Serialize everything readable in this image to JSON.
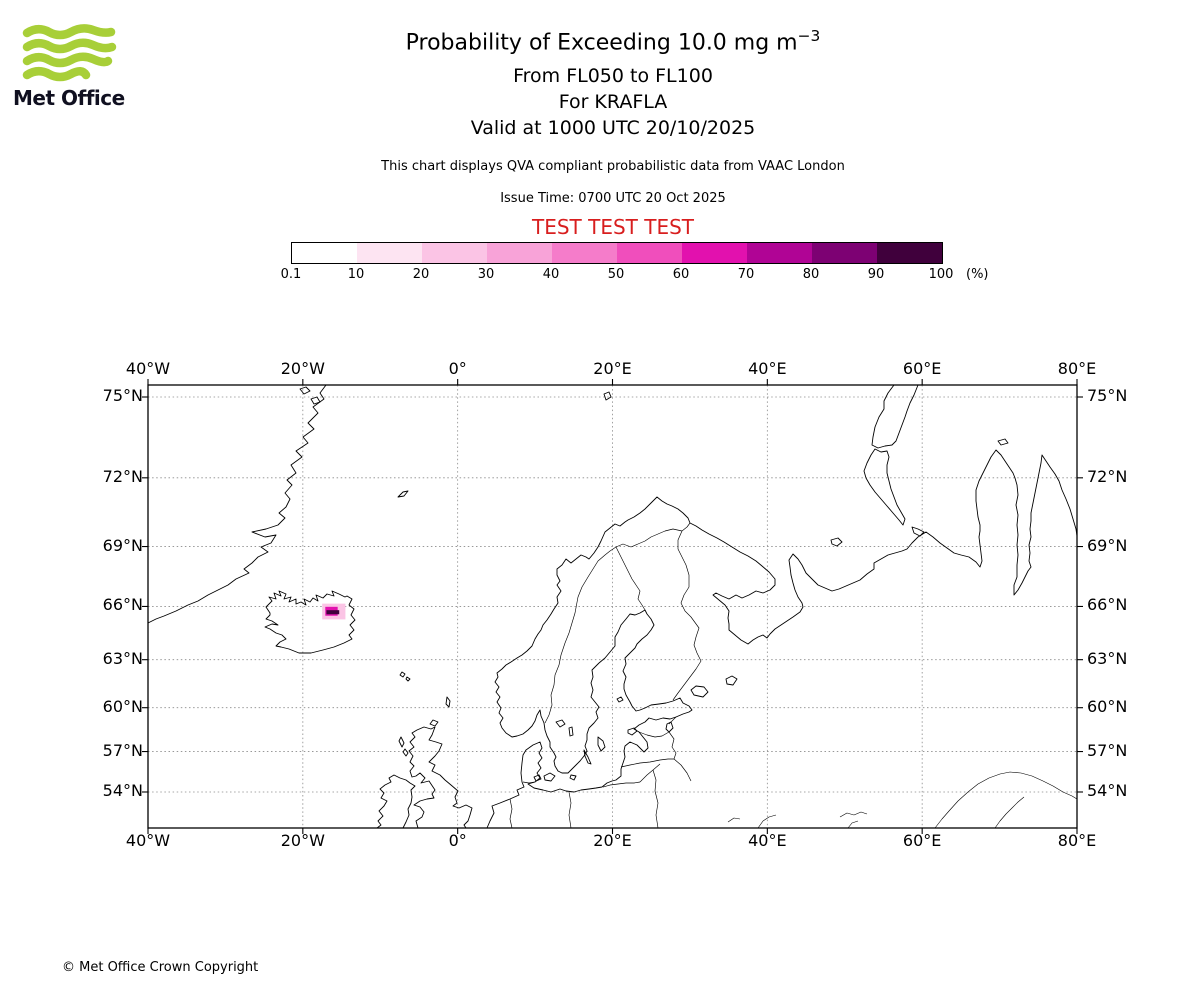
{
  "logo": {
    "brand": "Met Office"
  },
  "colors": {
    "logo_green": "#a8cf38",
    "logo_text": "#101020",
    "test_red": "#d81e1e",
    "coastline": "#000000",
    "gridline": "#8a8a8a"
  },
  "header": {
    "title_main": "Probability of Exceeding 10.0 mg m",
    "title_sup": "−3",
    "line_fl": "From FL050 to FL100",
    "line_volcano": "For KRAFLA",
    "line_valid": "Valid at 1000 UTC 20/10/2025",
    "qva_note": "This chart displays QVA compliant probabilistic data from VAAC London",
    "issue_time": "Issue Time: 0700 UTC 20 Oct 2025",
    "test_banner": "TEST TEST TEST"
  },
  "colorbar": {
    "labels": [
      "0.1",
      "10",
      "20",
      "30",
      "40",
      "50",
      "60",
      "70",
      "80",
      "90",
      "100"
    ],
    "unit": "(%)",
    "colors": [
      "#ffffff",
      "#fde4f2",
      "#fbc4e5",
      "#f8a3d8",
      "#f57cca",
      "#f04ebc",
      "#e211ae",
      "#b00495",
      "#7d0173",
      "#40003c"
    ]
  },
  "map_axes": {
    "lon_ticks": [
      {
        "deg": -40,
        "label": "40°W"
      },
      {
        "deg": -20,
        "label": "20°W"
      },
      {
        "deg": 0,
        "label": "0°"
      },
      {
        "deg": 20,
        "label": "20°E"
      },
      {
        "deg": 40,
        "label": "40°E"
      },
      {
        "deg": 60,
        "label": "60°E"
      },
      {
        "deg": 80,
        "label": "80°E"
      }
    ],
    "lat_ticks": [
      {
        "deg": 75,
        "label": "75°N"
      },
      {
        "deg": 72,
        "label": "72°N"
      },
      {
        "deg": 69,
        "label": "69°N"
      },
      {
        "deg": 66,
        "label": "66°N"
      },
      {
        "deg": 63,
        "label": "63°N"
      },
      {
        "deg": 60,
        "label": "60°N"
      },
      {
        "deg": 57,
        "label": "57°N"
      },
      {
        "deg": 54,
        "label": "54°N"
      }
    ]
  },
  "chart_data": {
    "type": "heatmap",
    "subtype": "geographic-probability-map",
    "title": "Probability of Exceeding 10.0 mg m−3",
    "flight_levels": "FL050 to FL100",
    "volcano": "KRAFLA",
    "valid_time": "1000 UTC 20/10/2025",
    "issue_time": "0700 UTC 20 Oct 2025",
    "projection": "mercator",
    "extent": {
      "lon_min": -40,
      "lon_max": 80,
      "lat_min": 51.1,
      "lat_max": 75.4
    },
    "grid": "on",
    "colorbar_thresholds_percent": [
      0.1,
      10,
      20,
      30,
      40,
      50,
      60,
      70,
      80,
      90,
      100
    ],
    "colorbar_unit": "(%)",
    "exceedance_cells": [
      {
        "lon_min": -17.5,
        "lon_max": -14.5,
        "lat_min": 65.3,
        "lat_max": 66.15,
        "probability_percent": 20
      },
      {
        "lon_min": -17.1,
        "lon_max": -15.5,
        "lat_min": 65.5,
        "lat_max": 65.98,
        "probability_percent": 60
      },
      {
        "lon_min": -16.95,
        "lon_max": -15.3,
        "lat_min": 65.58,
        "lat_max": 65.8,
        "probability_percent": 95
      }
    ]
  },
  "footer": {
    "copyright": "© Met Office Crown Copyright"
  }
}
